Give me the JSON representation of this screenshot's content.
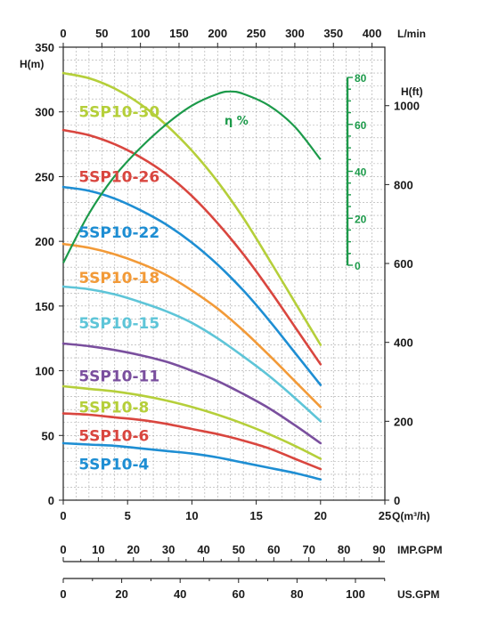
{
  "chart_data": {
    "type": "line",
    "x_axis": {
      "label": "Q(m³/h)",
      "range": [
        0,
        25
      ],
      "ticks": [
        0,
        5,
        10,
        15,
        20,
        25
      ]
    },
    "y_axis_left": {
      "label": "H(m)",
      "range": [
        0,
        350
      ],
      "ticks": [
        0,
        50,
        100,
        150,
        200,
        250,
        300,
        350
      ]
    },
    "y_axis_right": {
      "label": "H(ft)",
      "ticks": [
        0,
        200,
        400,
        600,
        800,
        1000
      ]
    },
    "top_axis": {
      "label": "L/min",
      "ticks": [
        0,
        50,
        100,
        150,
        200,
        250,
        300,
        350,
        400
      ]
    },
    "efficiency_axis": {
      "label": "η %",
      "range": [
        0,
        80
      ],
      "ticks": [
        0,
        20,
        40,
        60,
        80
      ]
    },
    "imp_gpm_axis": {
      "label": "IMP.GPM",
      "ticks": [
        0,
        10,
        20,
        30,
        40,
        50,
        60,
        70,
        80,
        90
      ]
    },
    "us_gpm_axis": {
      "label": "US.GPM",
      "ticks": [
        0,
        20,
        40,
        60,
        80,
        100
      ]
    },
    "grid": true,
    "series": [
      {
        "name": "5SP10-30",
        "color": "#b5cf3a",
        "label_at": [
          1.2,
          300
        ],
        "x": [
          0,
          2,
          4,
          6,
          8,
          10,
          12,
          14,
          16,
          18,
          20
        ],
        "values": [
          330,
          326,
          318,
          306,
          290,
          270,
          246,
          218,
          186,
          153,
          120
        ]
      },
      {
        "name": "5SP10-26",
        "color": "#d9463f",
        "label_at": [
          1.2,
          250
        ],
        "x": [
          0,
          2,
          4,
          6,
          8,
          10,
          12,
          14,
          16,
          18,
          20
        ],
        "values": [
          286,
          282,
          275,
          265,
          252,
          235,
          214,
          190,
          163,
          134,
          105
        ]
      },
      {
        "name": "5SP10-22",
        "color": "#1e8ed3",
        "label_at": [
          1.2,
          207
        ],
        "x": [
          0,
          2,
          4,
          6,
          8,
          10,
          12,
          14,
          16,
          18,
          20
        ],
        "values": [
          242,
          239,
          233,
          224,
          213,
          199,
          182,
          162,
          139,
          114,
          89
        ]
      },
      {
        "name": "5SP10-18",
        "color": "#f29a38",
        "label_at": [
          1.2,
          172
        ],
        "x": [
          0,
          2,
          4,
          6,
          8,
          10,
          12,
          14,
          16,
          18,
          20
        ],
        "values": [
          198,
          195,
          190,
          183,
          174,
          162,
          148,
          131,
          112,
          92,
          72
        ]
      },
      {
        "name": "5SP10-15",
        "color": "#5ec5d8",
        "label_at": [
          1.2,
          137
        ],
        "x": [
          0,
          2,
          4,
          6,
          8,
          10,
          12,
          14,
          16,
          18,
          20
        ],
        "values": [
          165,
          163,
          159,
          153,
          146,
          137,
          125,
          111,
          96,
          79,
          61
        ]
      },
      {
        "name": "5SP10-11",
        "color": "#7a4f9e",
        "label_at": [
          1.2,
          96
        ],
        "x": [
          0,
          2,
          4,
          6,
          8,
          10,
          12,
          14,
          16,
          18,
          20
        ],
        "values": [
          121,
          119,
          116,
          112,
          107,
          100,
          92,
          82,
          71,
          58,
          44
        ]
      },
      {
        "name": "5SP10-8",
        "color": "#b5cf3a",
        "label_at": [
          1.2,
          72
        ],
        "x": [
          0,
          2,
          4,
          6,
          8,
          10,
          12,
          14,
          16,
          18,
          20
        ],
        "values": [
          88,
          86,
          84,
          81,
          77,
          72,
          66,
          59,
          51,
          42,
          32
        ]
      },
      {
        "name": "5SP10-6",
        "color": "#d9463f",
        "label_at": [
          1.2,
          50
        ],
        "x": [
          0,
          2,
          4,
          6,
          8,
          10,
          12,
          14,
          16,
          18,
          20
        ],
        "values": [
          67,
          66,
          64,
          62,
          59,
          55,
          51,
          46,
          40,
          32,
          24
        ]
      },
      {
        "name": "5SP10-4",
        "color": "#1e8ed3",
        "label_at": [
          1.2,
          28
        ],
        "x": [
          0,
          2,
          4,
          6,
          8,
          10,
          12,
          14,
          16,
          18,
          20
        ],
        "values": [
          44,
          43,
          42,
          40,
          38,
          36,
          33,
          29,
          25,
          21,
          16
        ]
      }
    ],
    "efficiency": {
      "name": "η %",
      "color": "#1c9a4a",
      "label_at": [
        13.5,
        290
      ],
      "x": [
        0,
        2,
        4,
        6,
        8,
        10,
        12,
        13,
        14,
        16,
        18,
        20
      ],
      "values": [
        1,
        22,
        38,
        50,
        60,
        68,
        73,
        74,
        73,
        68,
        59,
        45
      ]
    }
  }
}
